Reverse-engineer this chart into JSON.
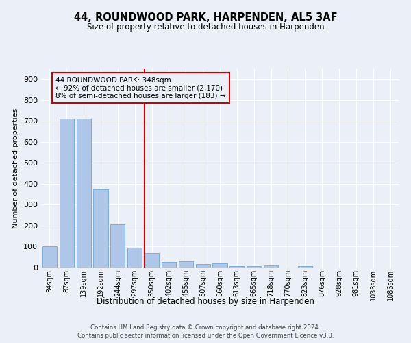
{
  "title1": "44, ROUNDWOOD PARK, HARPENDEN, AL5 3AF",
  "title2": "Size of property relative to detached houses in Harpenden",
  "xlabel": "Distribution of detached houses by size in Harpenden",
  "ylabel": "Number of detached properties",
  "categories": [
    "34sqm",
    "87sqm",
    "139sqm",
    "192sqm",
    "244sqm",
    "297sqm",
    "350sqm",
    "402sqm",
    "455sqm",
    "507sqm",
    "560sqm",
    "613sqm",
    "665sqm",
    "718sqm",
    "770sqm",
    "823sqm",
    "876sqm",
    "928sqm",
    "981sqm",
    "1033sqm",
    "1086sqm"
  ],
  "values": [
    100,
    710,
    710,
    375,
    205,
    95,
    70,
    27,
    30,
    17,
    20,
    8,
    8,
    10,
    0,
    7,
    0,
    0,
    0,
    0,
    0
  ],
  "bar_color": "#aec6e8",
  "bar_edge_color": "#5b9bd5",
  "property_index": 6,
  "property_line_color": "#cc0000",
  "annotation_text": "44 ROUNDWOOD PARK: 348sqm\n← 92% of detached houses are smaller (2,170)\n8% of semi-detached houses are larger (183) →",
  "annotation_box_color": "#cc0000",
  "ylim": [
    0,
    950
  ],
  "yticks": [
    0,
    100,
    200,
    300,
    400,
    500,
    600,
    700,
    800,
    900
  ],
  "footer1": "Contains HM Land Registry data © Crown copyright and database right 2024.",
  "footer2": "Contains public sector information licensed under the Open Government Licence v3.0.",
  "bg_color": "#eaeff8",
  "grid_color": "#ffffff"
}
